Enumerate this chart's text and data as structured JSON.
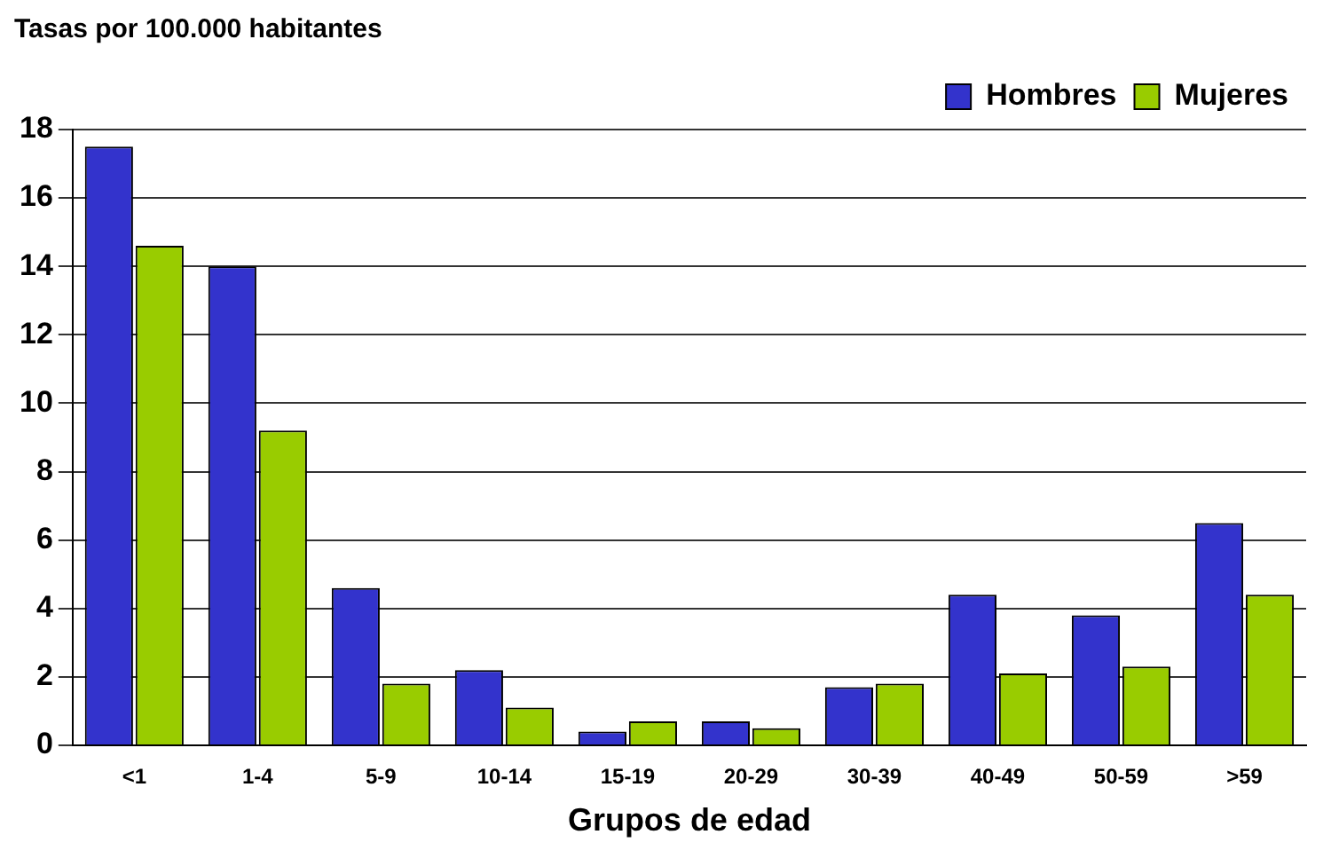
{
  "chart_data": {
    "type": "bar",
    "title": "Tasas por 100.000 habitantes",
    "xlabel": "Grupos de edad",
    "categories": [
      "<1",
      "1-4",
      "5-9",
      "10-14",
      "15-19",
      "20-29",
      "30-39",
      "40-49",
      "50-59",
      ">59"
    ],
    "series": [
      {
        "name": "Hombres",
        "color": "#3333cc",
        "values": [
          17.5,
          14.0,
          4.6,
          2.2,
          0.4,
          0.7,
          1.7,
          4.4,
          3.8,
          6.5
        ]
      },
      {
        "name": "Mujeres",
        "color": "#99cc00",
        "values": [
          14.6,
          9.2,
          1.8,
          1.1,
          0.7,
          0.5,
          1.8,
          2.1,
          2.3,
          4.4
        ]
      }
    ],
    "ylim": [
      0,
      18
    ],
    "yticks": [
      0,
      2,
      4,
      6,
      8,
      10,
      12,
      14,
      16,
      18
    ],
    "grid": "y",
    "legend": "top right"
  }
}
